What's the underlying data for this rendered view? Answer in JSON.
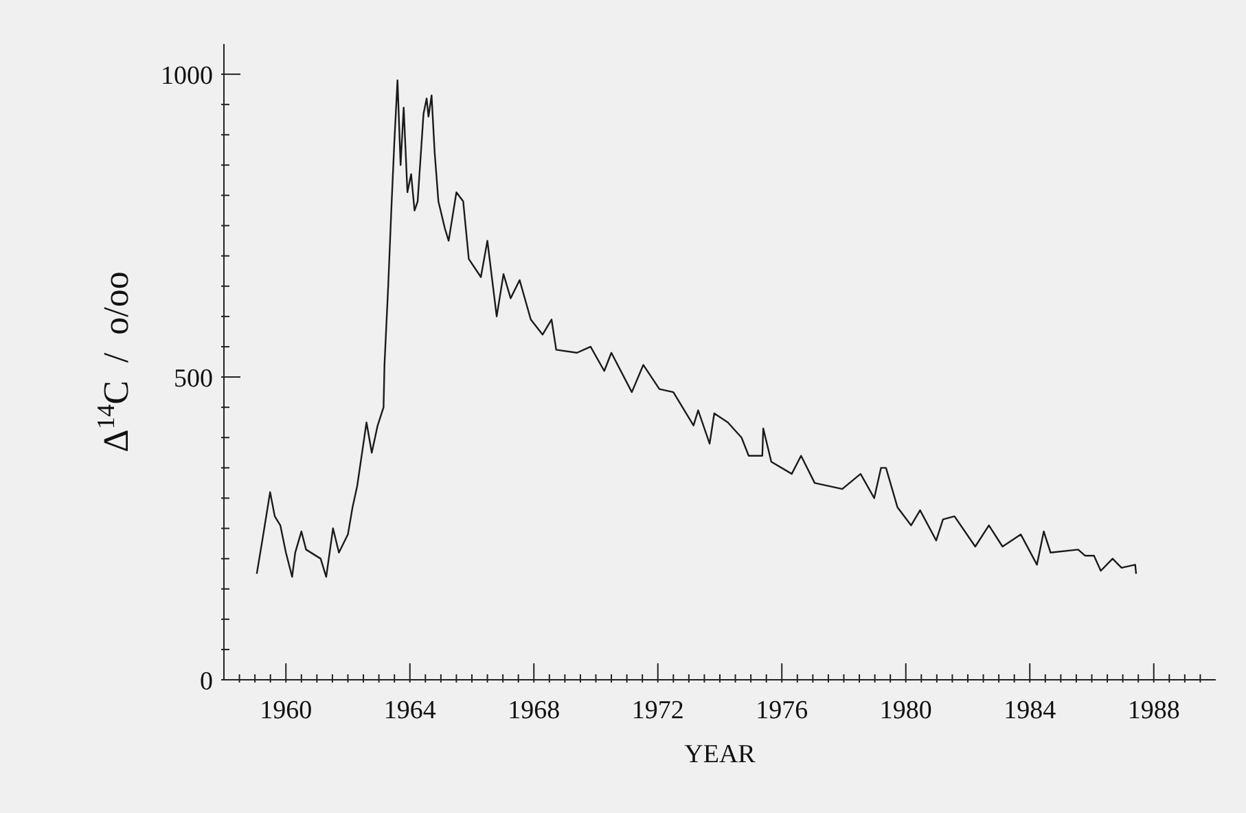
{
  "chart_data": {
    "type": "line",
    "xlabel": "YEAR",
    "ylabel": "Δ$^{14}$C  /  o/oo",
    "xlim": [
      1958,
      1990
    ],
    "ylim": [
      0,
      1050
    ],
    "xticks": [
      {
        "value": 1958.5,
        "label": null
      },
      {
        "value": 1959,
        "label": null
      },
      {
        "value": 1959.5,
        "label": null
      },
      1960,
      {
        "value": 1960.5,
        "label": null
      },
      {
        "value": 1961,
        "label": null
      },
      {
        "value": 1961.5,
        "label": null
      },
      {
        "value": 1962,
        "label": null
      },
      {
        "value": 1962.5,
        "label": null
      },
      {
        "value": 1963,
        "label": null
      },
      {
        "value": 1963.5,
        "label": null
      },
      1964,
      {
        "value": 1964.5,
        "label": null
      },
      {
        "value": 1965,
        "label": null
      },
      {
        "value": 1965.5,
        "label": null
      },
      {
        "value": 1966,
        "label": null
      },
      {
        "value": 1966.5,
        "label": null
      },
      {
        "value": 1967,
        "label": null
      },
      {
        "value": 1967.5,
        "label": null
      },
      1968,
      {
        "value": 1968.5,
        "label": null
      },
      {
        "value": 1969,
        "label": null
      },
      {
        "value": 1969.5,
        "label": null
      },
      {
        "value": 1970,
        "label": null
      },
      {
        "value": 1970.5,
        "label": null
      },
      {
        "value": 1971,
        "label": null
      },
      {
        "value": 1971.5,
        "label": null
      },
      1972,
      {
        "value": 1972.5,
        "label": null
      },
      {
        "value": 1973,
        "label": null
      },
      {
        "value": 1973.5,
        "label": null
      },
      {
        "value": 1974,
        "label": null
      },
      {
        "value": 1974.5,
        "label": null
      },
      {
        "value": 1975,
        "label": null
      },
      {
        "value": 1975.5,
        "label": null
      },
      1976,
      {
        "value": 1976.5,
        "label": null
      },
      {
        "value": 1977,
        "label": null
      },
      {
        "value": 1977.5,
        "label": null
      },
      {
        "value": 1978,
        "label": null
      },
      {
        "value": 1978.5,
        "label": null
      },
      {
        "value": 1979,
        "label": null
      },
      {
        "value": 1979.5,
        "label": null
      },
      1980,
      {
        "value": 1980.5,
        "label": null
      },
      {
        "value": 1981,
        "label": null
      },
      {
        "value": 1981.5,
        "label": null
      },
      {
        "value": 1982,
        "label": null
      },
      {
        "value": 1982.5,
        "label": null
      },
      {
        "value": 1983,
        "label": null
      },
      {
        "value": 1983.5,
        "label": null
      },
      1984,
      {
        "value": 1984.5,
        "label": null
      },
      {
        "value": 1985,
        "label": null
      },
      {
        "value": 1985.5,
        "label": null
      },
      {
        "value": 1986,
        "label": null
      },
      {
        "value": 1986.5,
        "label": null
      },
      {
        "value": 1987,
        "label": null
      },
      {
        "value": 1987.5,
        "label": null
      },
      1988,
      {
        "value": 1988.5,
        "label": null
      },
      {
        "value": 1989,
        "label": null
      },
      {
        "value": 1989.5,
        "label": null
      }
    ],
    "yticks": [
      0,
      {
        "value": 50,
        "label": null
      },
      {
        "value": 100,
        "label": null
      },
      {
        "value": 150,
        "label": null
      },
      {
        "value": 200,
        "label": null
      },
      {
        "value": 250,
        "label": null
      },
      {
        "value": 300,
        "label": null
      },
      {
        "value": 350,
        "label": null
      },
      {
        "value": 400,
        "label": null
      },
      {
        "value": 450,
        "label": null
      },
      500,
      {
        "value": 550,
        "label": null
      },
      {
        "value": 600,
        "label": null
      },
      {
        "value": 650,
        "label": null
      },
      {
        "value": 700,
        "label": null
      },
      {
        "value": 750,
        "label": null
      },
      {
        "value": 800,
        "label": null
      },
      {
        "value": 850,
        "label": null
      },
      {
        "value": 900,
        "label": null
      },
      {
        "value": 950,
        "label": null
      },
      1000
    ],
    "series": [
      {
        "color": "#1a1a1a",
        "x": [
          1959.06,
          1959.27,
          1959.49,
          1959.64,
          1959.82,
          1960.0,
          1960.2,
          1960.3,
          1960.5,
          1960.65,
          1961.12,
          1961.3,
          1961.52,
          1961.71,
          1962.0,
          1962.15,
          1962.3,
          1962.6,
          1962.77,
          1962.96,
          1963.15,
          1963.18,
          1963.3,
          1963.4,
          1963.5,
          1963.6,
          1963.7,
          1963.8,
          1963.92,
          1964.04,
          1964.15,
          1964.25,
          1964.44,
          1964.54,
          1964.6,
          1964.7,
          1964.8,
          1964.92,
          1965.13,
          1965.25,
          1965.5,
          1965.72,
          1965.9,
          1966.29,
          1966.5,
          1966.8,
          1967.02,
          1967.25,
          1967.54,
          1967.9,
          1968.28,
          1968.57,
          1968.72,
          1969.39,
          1969.83,
          1970.27,
          1970.5,
          1971.16,
          1971.53,
          1972.05,
          1972.5,
          1973.15,
          1973.3,
          1973.67,
          1973.82,
          1974.26,
          1974.7,
          1974.93,
          1975.37,
          1975.4,
          1975.66,
          1976.32,
          1976.62,
          1977.06,
          1977.95,
          1978.54,
          1978.98,
          1979.2,
          1979.36,
          1979.73,
          1980.17,
          1980.46,
          1980.98,
          1981.2,
          1981.57,
          1982.24,
          1982.68,
          1983.12,
          1983.71,
          1984.23,
          1984.45,
          1984.67,
          1985.56,
          1985.78,
          1986.07,
          1986.29,
          1986.67,
          1986.96,
          1987.4,
          1987.43
        ],
        "values": [
          175,
          240,
          310,
          270,
          255,
          210,
          170,
          210,
          245,
          215,
          200,
          170,
          250,
          210,
          240,
          285,
          320,
          425,
          375,
          420,
          450,
          520,
          650,
          775,
          890,
          990,
          850,
          945,
          805,
          835,
          775,
          790,
          935,
          960,
          930,
          965,
          870,
          790,
          745,
          725,
          805,
          790,
          695,
          665,
          725,
          600,
          670,
          630,
          660,
          595,
          570,
          595,
          545,
          540,
          550,
          510,
          540,
          475,
          520,
          480,
          475,
          420,
          445,
          390,
          440,
          425,
          400,
          370,
          370,
          415,
          360,
          340,
          370,
          325,
          315,
          340,
          300,
          350,
          350,
          285,
          255,
          280,
          230,
          265,
          270,
          220,
          255,
          220,
          240,
          190,
          245,
          210,
          215,
          205,
          205,
          180,
          200,
          185,
          190,
          175
        ]
      }
    ]
  }
}
